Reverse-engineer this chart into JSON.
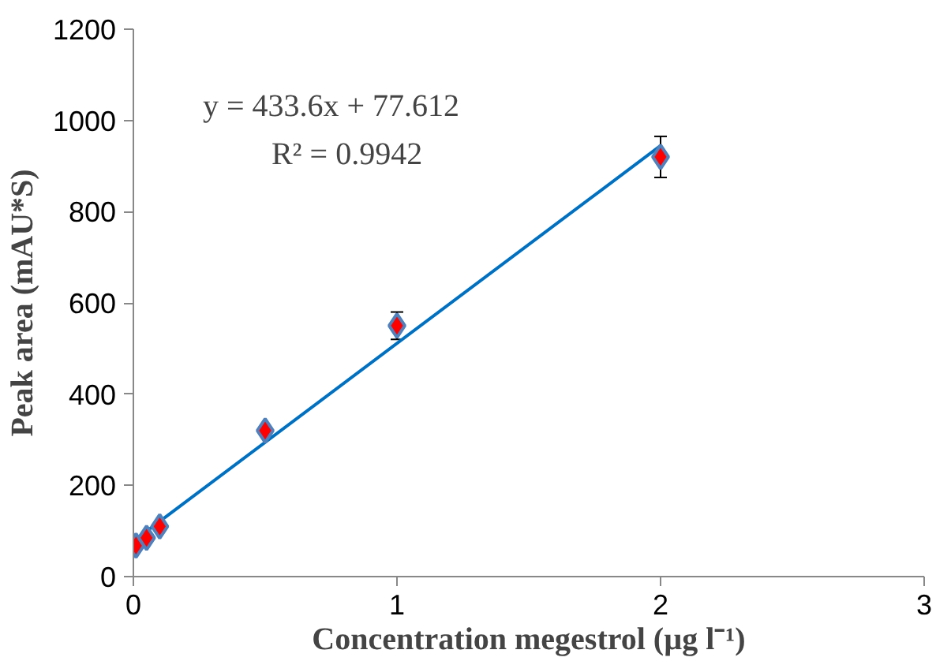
{
  "chart_data": {
    "type": "scatter",
    "xlabel": "Concentration megestrol (µg l⁻¹)",
    "ylabel": "Peak area (mAU*S)",
    "annotations": [
      "y = 433.6x + 77.612",
      "R² = 0.9942"
    ],
    "xlim": [
      0,
      3
    ],
    "xticks": [
      0,
      1,
      2,
      3
    ],
    "ylim": [
      0,
      1200
    ],
    "yticks": [
      0,
      200,
      400,
      600,
      800,
      1000,
      1200
    ],
    "grid": false,
    "series": [
      {
        "color": "#ff0000",
        "x": [
          0.01,
          0.05,
          0.1,
          0.5,
          1,
          2
        ],
        "values": [
          68,
          85,
          110,
          320,
          550,
          920
        ],
        "errors": [
          null,
          null,
          null,
          null,
          30,
          45
        ],
        "marker": "diamond"
      },
      {
        "type": "line",
        "color": "#0070c0",
        "x": [
          0,
          2
        ],
        "values": [
          77.6,
          944.8
        ],
        "line_style": "solid",
        "marker": "none"
      }
    ]
  }
}
